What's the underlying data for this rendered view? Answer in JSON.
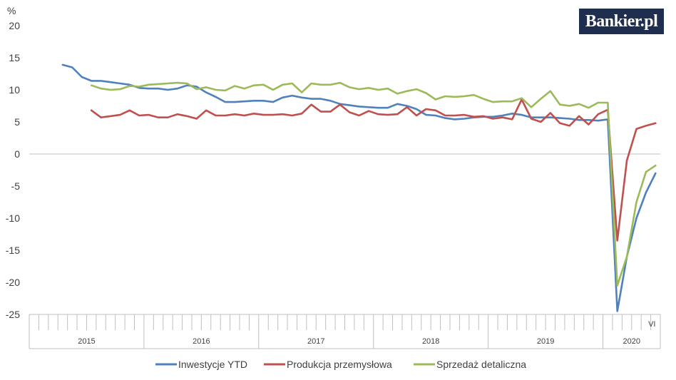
{
  "logo": {
    "text": "Bankier.pl"
  },
  "chart_data": {
    "type": "line",
    "ylabel": "%",
    "ylim": [
      -25,
      20
    ],
    "yticks": [
      20,
      15,
      10,
      5,
      0,
      -5,
      -10,
      -15,
      -20,
      -25
    ],
    "grid": false,
    "legend_position": "bottom",
    "years": [
      "2015",
      "2016",
      "2017",
      "2018",
      "2019",
      "2020"
    ],
    "month_label": "VI",
    "x_start": "2015-01",
    "x_end": "2020-06",
    "series": [
      {
        "name": "Inwestycje YTD",
        "color": "#4f81bd",
        "values": [
          13.9,
          13.5,
          12.0,
          11.4,
          11.4,
          11.2,
          11.0,
          10.8,
          10.3,
          10.2,
          10.2,
          10.0,
          10.2,
          10.7,
          10.5,
          9.6,
          8.9,
          8.1,
          8.1,
          8.2,
          8.3,
          8.3,
          8.1,
          8.8,
          9.1,
          8.8,
          8.6,
          8.6,
          8.3,
          7.8,
          7.6,
          7.4,
          7.3,
          7.2,
          7.2,
          7.8,
          7.5,
          7.0,
          6.1,
          6.0,
          5.6,
          5.4,
          5.5,
          5.7,
          5.8,
          5.8,
          6.0,
          6.3,
          6.1,
          5.7,
          5.7,
          5.7,
          5.6,
          5.5,
          5.3,
          5.3,
          5.2,
          5.4,
          -24.5,
          -16.0,
          -10.0,
          -6.0,
          -3.0
        ]
      },
      {
        "name": "Produkcja przemysłowa",
        "color": "#c0504d",
        "values": [
          6.8,
          5.7,
          5.9,
          6.1,
          6.8,
          6.0,
          6.1,
          5.7,
          5.7,
          6.2,
          5.9,
          5.5,
          6.8,
          6.0,
          6.0,
          6.2,
          6.0,
          6.3,
          6.1,
          6.1,
          6.2,
          6.0,
          6.3,
          7.7,
          6.6,
          6.6,
          7.7,
          6.5,
          6.0,
          6.7,
          6.2,
          6.1,
          6.2,
          7.3,
          6.0,
          7.0,
          6.8,
          6.0,
          6.0,
          6.1,
          5.8,
          5.9,
          5.5,
          5.7,
          5.4,
          8.5,
          5.5,
          5.0,
          6.4,
          4.8,
          4.4,
          5.9,
          4.6,
          6.2,
          6.9,
          -13.5,
          -1.0,
          3.9,
          4.4,
          4.8
        ]
      },
      {
        "name": "Sprzedaż detaliczna",
        "color": "#9bbb59",
        "values": [
          10.7,
          10.2,
          10.0,
          10.1,
          10.6,
          10.5,
          10.8,
          10.9,
          11.0,
          11.1,
          11.0,
          10.1,
          10.4,
          10.0,
          9.9,
          10.6,
          10.2,
          10.7,
          10.8,
          10.0,
          10.8,
          11.0,
          9.6,
          11.0,
          10.8,
          10.8,
          11.1,
          10.4,
          10.1,
          10.3,
          10.0,
          10.2,
          9.4,
          9.8,
          10.1,
          9.5,
          8.5,
          9.0,
          8.9,
          9.0,
          9.2,
          8.6,
          8.1,
          8.2,
          8.2,
          8.7,
          7.3,
          8.6,
          9.8,
          7.7,
          7.5,
          7.8,
          7.2,
          8.0,
          8.0,
          -20.5,
          -16.0,
          -7.5,
          -2.8,
          -1.8
        ]
      }
    ]
  }
}
